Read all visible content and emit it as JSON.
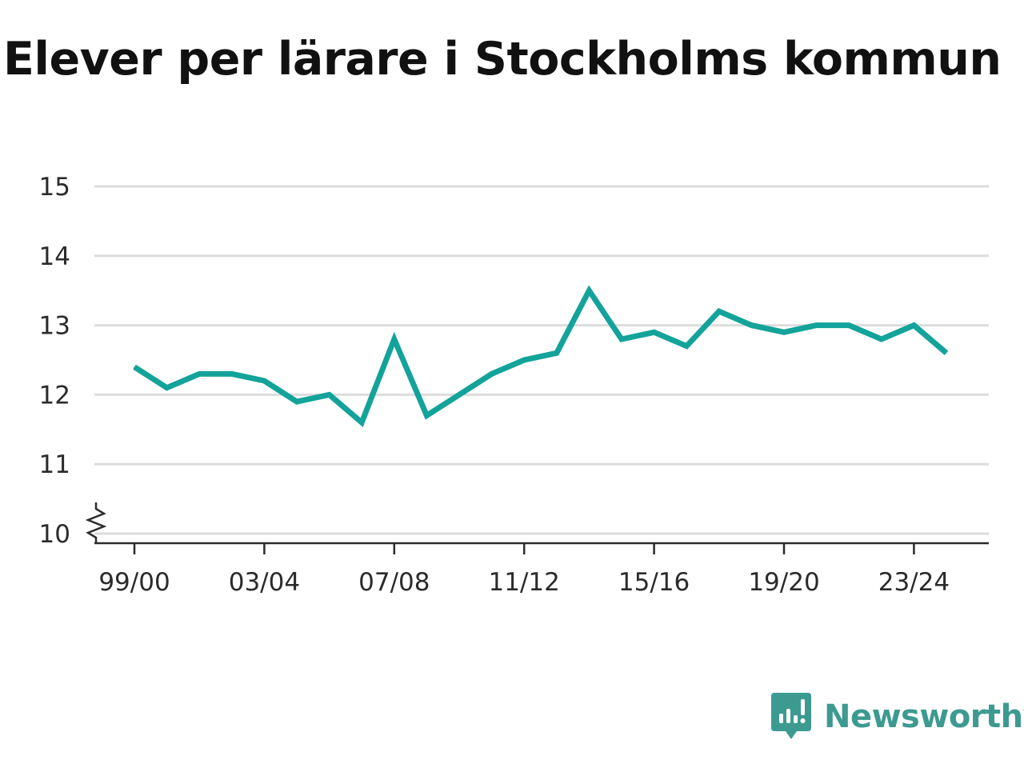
{
  "title": "Elever per lärare i Stockholms kommun",
  "brand": {
    "name": "Newsworthy",
    "color": "#3d9a91"
  },
  "colors": {
    "line": "#13a39a",
    "grid": "#dddddd",
    "axis": "#2b2b2b"
  },
  "chart_data": {
    "type": "line",
    "title": "Elever per lärare i Stockholms kommun",
    "xlabel": "",
    "ylabel": "",
    "x": [
      "99/00",
      "00/01",
      "01/02",
      "02/03",
      "03/04",
      "04/05",
      "05/06",
      "06/07",
      "07/08",
      "08/09",
      "09/10",
      "10/11",
      "11/12",
      "12/13",
      "13/14",
      "14/15",
      "15/16",
      "16/17",
      "17/18",
      "18/19",
      "19/20",
      "20/21",
      "21/22",
      "22/23",
      "23/24",
      "24/25"
    ],
    "x_tick_labels": [
      "99/00",
      "03/04",
      "07/08",
      "11/12",
      "15/16",
      "19/20",
      "23/24"
    ],
    "series": [
      {
        "values": [
          12.4,
          12.1,
          12.3,
          12.3,
          12.2,
          11.9,
          12.0,
          11.6,
          12.8,
          11.7,
          12.0,
          12.3,
          12.5,
          12.6,
          13.5,
          12.8,
          12.9,
          12.7,
          13.2,
          13.0,
          12.9,
          13.0,
          13.0,
          12.8,
          13.0,
          12.6
        ]
      }
    ],
    "ylim": [
      10,
      15
    ],
    "y_ticks": [
      10,
      11,
      12,
      13,
      14,
      15
    ],
    "y_axis_break": true,
    "grid": true,
    "legend": "none"
  }
}
